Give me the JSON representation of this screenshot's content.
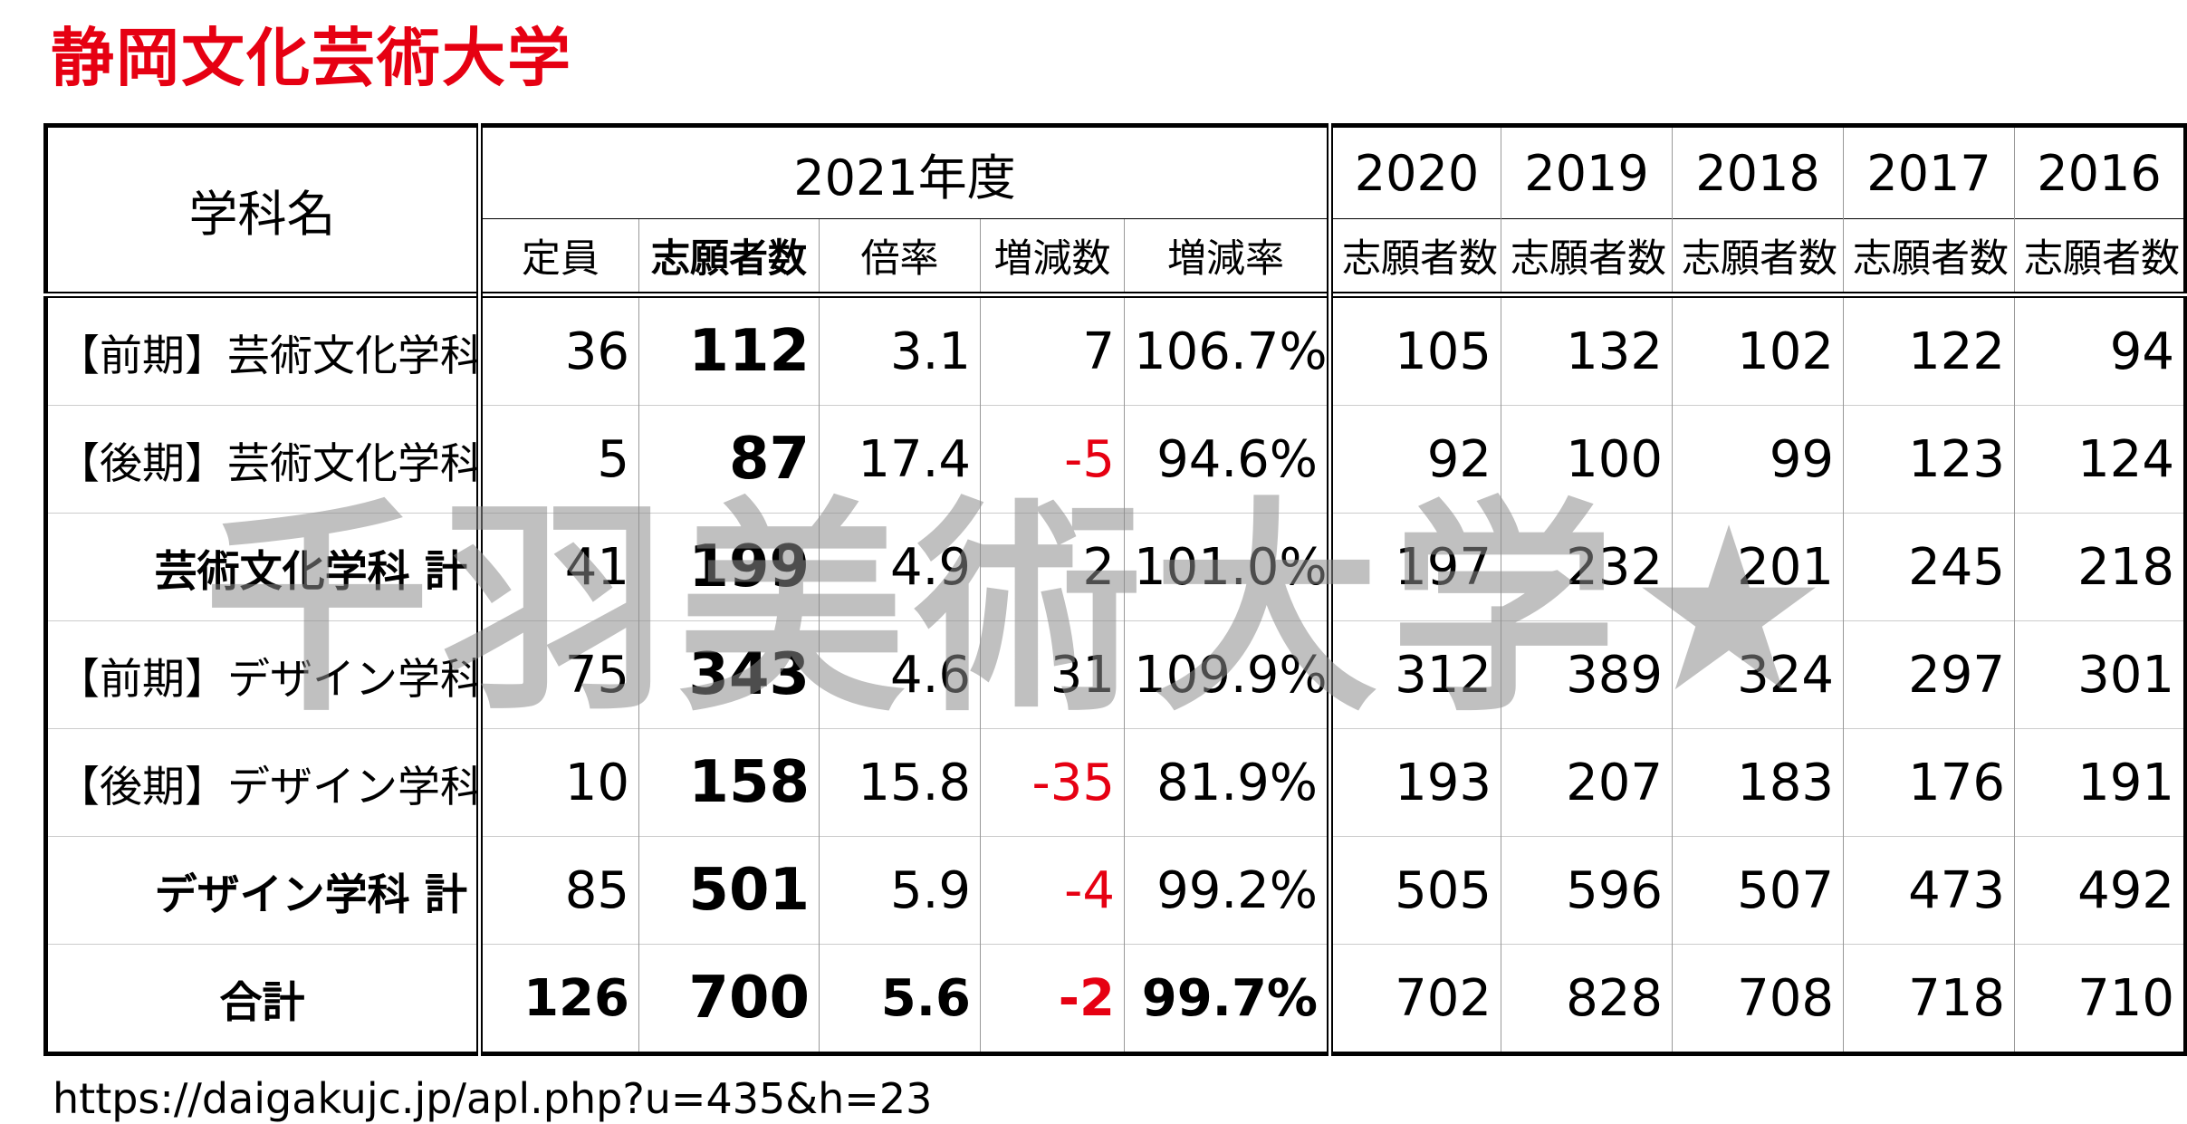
{
  "title": "静岡文化芸術大学",
  "table": {
    "header": {
      "department": "学科名",
      "year_current": "2021年度",
      "years_past": [
        "2020",
        "2019",
        "2018",
        "2017",
        "2016"
      ],
      "columns_current": [
        "定員",
        "志願者数",
        "倍率",
        "増減数",
        "増減率"
      ],
      "columns_past": [
        "志願者数",
        "志願者数",
        "志願者数",
        "志願者数",
        "志願者数"
      ]
    },
    "rows": [
      [
        "【前期】芸術文化学科",
        "36",
        "112",
        "3.1",
        "7",
        "106.7%",
        "105",
        "132",
        "102",
        "122",
        "94"
      ],
      [
        "【後期】芸術文化学科",
        "5",
        "87",
        "17.4",
        "-5",
        "94.6%",
        "92",
        "100",
        "99",
        "123",
        "124"
      ],
      [
        "芸術文化学科 計",
        "41",
        "199",
        "4.9",
        "2",
        "101.0%",
        "197",
        "232",
        "201",
        "245",
        "218"
      ],
      [
        "【前期】デザイン学科",
        "75",
        "343",
        "4.6",
        "31",
        "109.9%",
        "312",
        "389",
        "324",
        "297",
        "301"
      ],
      [
        "【後期】デザイン学科",
        "10",
        "158",
        "15.8",
        "-35",
        "81.9%",
        "193",
        "207",
        "183",
        "176",
        "191"
      ],
      [
        "デザイン学科 計",
        "85",
        "501",
        "5.9",
        "-4",
        "99.2%",
        "505",
        "596",
        "507",
        "473",
        "492"
      ],
      [
        "合計",
        "126",
        "700",
        "5.6",
        "-2",
        "99.7%",
        "702",
        "828",
        "708",
        "718",
        "710"
      ]
    ]
  },
  "watermark": "千羽美術大学★",
  "source_url": "https://daigakujc.jp/apl.php?u=435&h=23"
}
